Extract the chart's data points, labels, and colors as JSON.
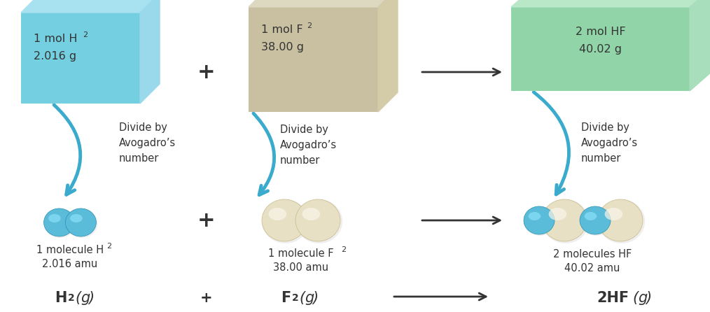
{
  "background_color": "#ffffff",
  "box1_front": "#74cfe0",
  "box1_top": "#a8e2f0",
  "box1_right": "#9ad8ec",
  "box2_front": "#c8c0a0",
  "box2_top": "#ddd8c0",
  "box2_right": "#d4cca8",
  "box3_front": "#90d4a8",
  "box3_top": "#b8e8c8",
  "box3_right": "#a8debb",
  "arrow_color": "#333333",
  "curve_arrow_color": "#3aabcc",
  "sphere_h_color": "#5bbcda",
  "sphere_h_highlight": "#8ae0f8",
  "sphere_h_dark": "#2890b0",
  "sphere_f_color": "#e8e0c4",
  "sphere_f_highlight": "#f8f4e8",
  "sphere_f_dark": "#c8b888",
  "text_color": "#333333",
  "divide_text": [
    "Divide by",
    "Avogadro’s",
    "number"
  ],
  "plus": "+"
}
